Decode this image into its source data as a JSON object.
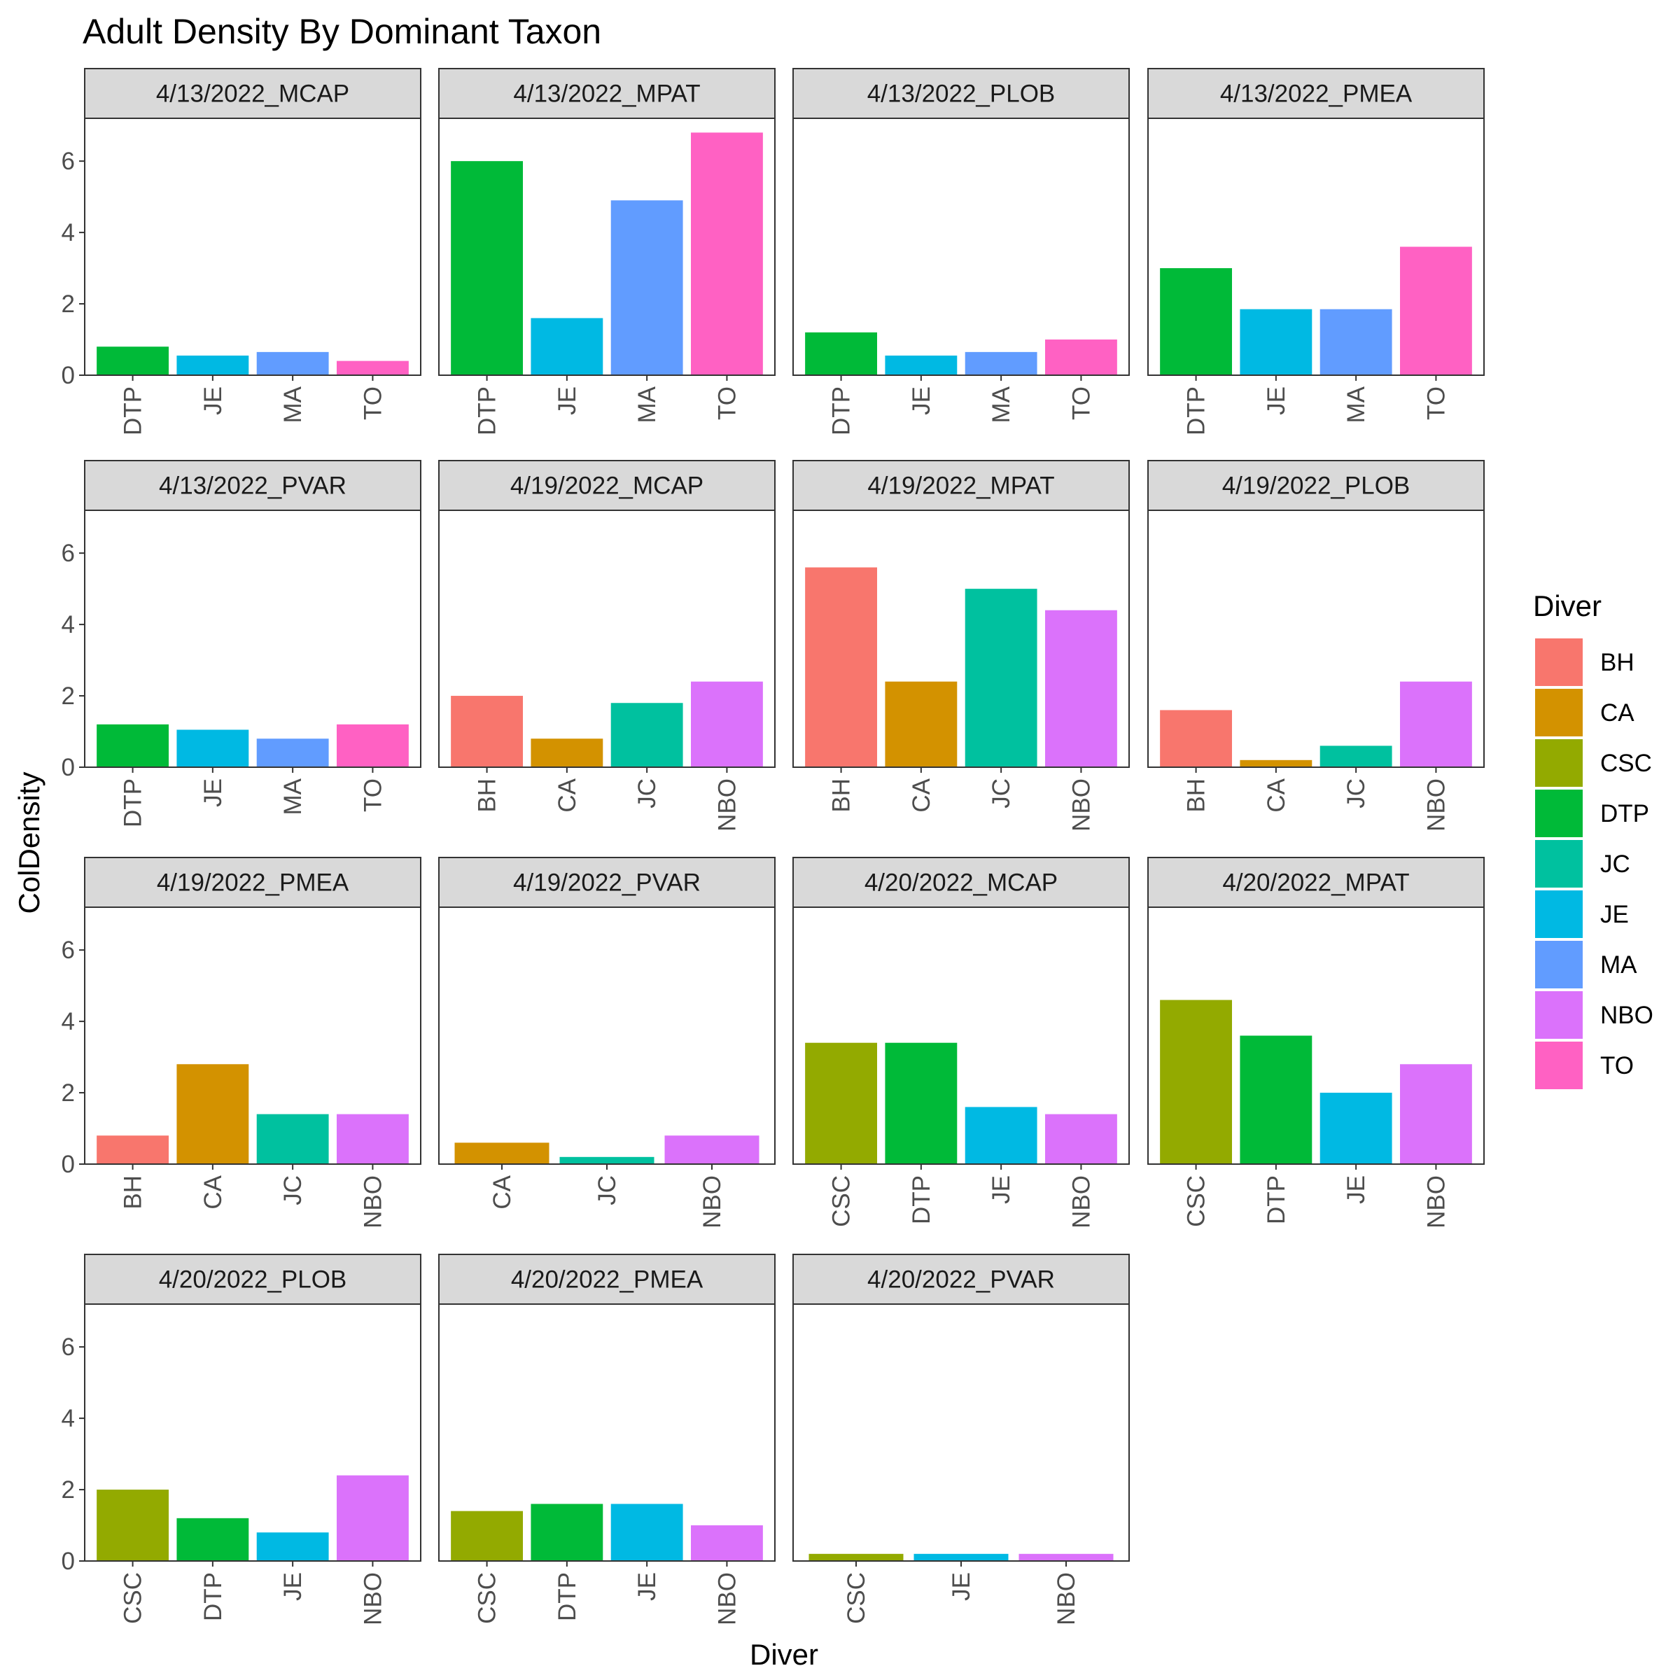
{
  "chart_data": {
    "type": "bar",
    "title": "Adult Density By Dominant Taxon",
    "xlabel": "Diver",
    "ylabel": "ColDensity",
    "ylim": [
      0,
      7.2
    ],
    "yticks": [
      0,
      2,
      4,
      6
    ],
    "grid": false,
    "facet_scales": "free_x",
    "legend": {
      "title": "Diver",
      "position": "right",
      "entries": [
        {
          "name": "BH",
          "color": "#F8766D"
        },
        {
          "name": "CA",
          "color": "#D39200"
        },
        {
          "name": "CSC",
          "color": "#93AA00"
        },
        {
          "name": "DTP",
          "color": "#00BA38"
        },
        {
          "name": "JC",
          "color": "#00C19F"
        },
        {
          "name": "JE",
          "color": "#00B9E3"
        },
        {
          "name": "MA",
          "color": "#619CFF"
        },
        {
          "name": "NBO",
          "color": "#DB72FB"
        },
        {
          "name": "TO",
          "color": "#FF61C3"
        }
      ]
    },
    "panels": [
      {
        "label": "4/13/2022_MCAP",
        "categories": [
          "DTP",
          "JE",
          "MA",
          "TO"
        ],
        "values": [
          0.8,
          0.55,
          0.65,
          0.4
        ]
      },
      {
        "label": "4/13/2022_MPAT",
        "categories": [
          "DTP",
          "JE",
          "MA",
          "TO"
        ],
        "values": [
          6.0,
          1.6,
          4.9,
          6.8
        ]
      },
      {
        "label": "4/13/2022_PLOB",
        "categories": [
          "DTP",
          "JE",
          "MA",
          "TO"
        ],
        "values": [
          1.2,
          0.55,
          0.65,
          1.0
        ]
      },
      {
        "label": "4/13/2022_PMEA",
        "categories": [
          "DTP",
          "JE",
          "MA",
          "TO"
        ],
        "values": [
          3.0,
          1.85,
          1.85,
          3.6
        ]
      },
      {
        "label": "4/13/2022_PVAR",
        "categories": [
          "DTP",
          "JE",
          "MA",
          "TO"
        ],
        "values": [
          1.2,
          1.05,
          0.8,
          1.2
        ]
      },
      {
        "label": "4/19/2022_MCAP",
        "categories": [
          "BH",
          "CA",
          "JC",
          "NBO"
        ],
        "values": [
          2.0,
          0.8,
          1.8,
          2.4
        ]
      },
      {
        "label": "4/19/2022_MPAT",
        "categories": [
          "BH",
          "CA",
          "JC",
          "NBO"
        ],
        "values": [
          5.6,
          2.4,
          5.0,
          4.4
        ]
      },
      {
        "label": "4/19/2022_PLOB",
        "categories": [
          "BH",
          "CA",
          "JC",
          "NBO"
        ],
        "values": [
          1.6,
          0.2,
          0.6,
          2.4
        ]
      },
      {
        "label": "4/19/2022_PMEA",
        "categories": [
          "BH",
          "CA",
          "JC",
          "NBO"
        ],
        "values": [
          0.8,
          2.8,
          1.4,
          1.4
        ]
      },
      {
        "label": "4/19/2022_PVAR",
        "categories": [
          "CA",
          "JC",
          "NBO"
        ],
        "values": [
          0.6,
          0.2,
          0.8
        ]
      },
      {
        "label": "4/20/2022_MCAP",
        "categories": [
          "CSC",
          "DTP",
          "JE",
          "NBO"
        ],
        "values": [
          3.4,
          3.4,
          1.6,
          1.4
        ]
      },
      {
        "label": "4/20/2022_MPAT",
        "categories": [
          "CSC",
          "DTP",
          "JE",
          "NBO"
        ],
        "values": [
          4.6,
          3.6,
          2.0,
          2.8
        ]
      },
      {
        "label": "4/20/2022_PLOB",
        "categories": [
          "CSC",
          "DTP",
          "JE",
          "NBO"
        ],
        "values": [
          2.0,
          1.2,
          0.8,
          2.4
        ]
      },
      {
        "label": "4/20/2022_PMEA",
        "categories": [
          "CSC",
          "DTP",
          "JE",
          "NBO"
        ],
        "values": [
          1.4,
          1.6,
          1.6,
          1.0
        ]
      },
      {
        "label": "4/20/2022_PVAR",
        "categories": [
          "CSC",
          "JE",
          "NBO"
        ],
        "values": [
          0.2,
          0.2,
          0.2
        ]
      }
    ]
  }
}
